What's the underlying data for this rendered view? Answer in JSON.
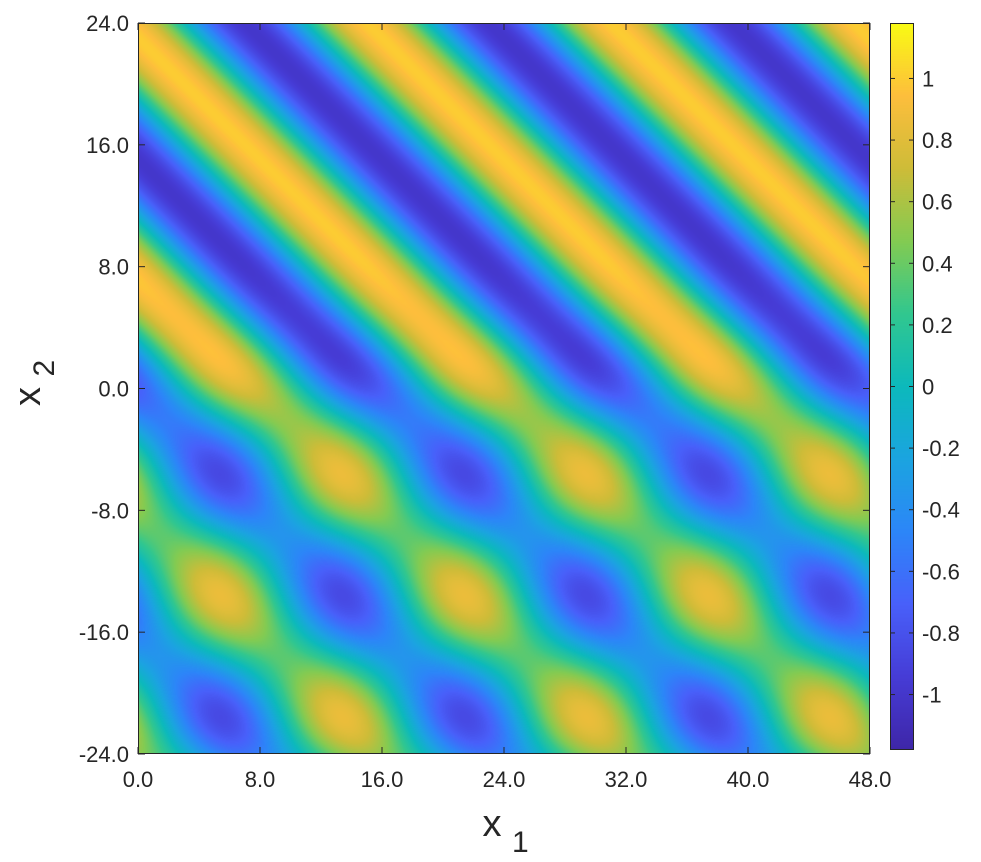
{
  "chart_data": {
    "type": "heatmap",
    "title": "",
    "xlabel": "x",
    "xlabel_sub": "1",
    "ylabel": "x",
    "ylabel_sub": "2",
    "xlim": [
      0,
      48
    ],
    "ylim": [
      -24,
      24
    ],
    "x_ticks": [
      "0.0",
      "8.0",
      "16.0",
      "24.0",
      "32.0",
      "40.0",
      "48.0"
    ],
    "y_ticks": [
      "-24.0",
      "-16.0",
      "-8.0",
      "0.0",
      "8.0",
      "16.0",
      "24.0"
    ],
    "colorbar": {
      "range": [
        -1.18,
        1.18
      ],
      "ticks": [
        "-1",
        "-0.8",
        "-0.6",
        "-0.4",
        "-0.2",
        "0",
        "0.2",
        "0.4",
        "0.6",
        "0.8",
        "1"
      ],
      "colormap": "parula"
    },
    "field": {
      "description_pattern": "diagonal stripes for x2 > 0; modulated checker pattern for x2 < 0",
      "amplitude_min": -1.18,
      "amplitude_max": 1.18
    }
  }
}
